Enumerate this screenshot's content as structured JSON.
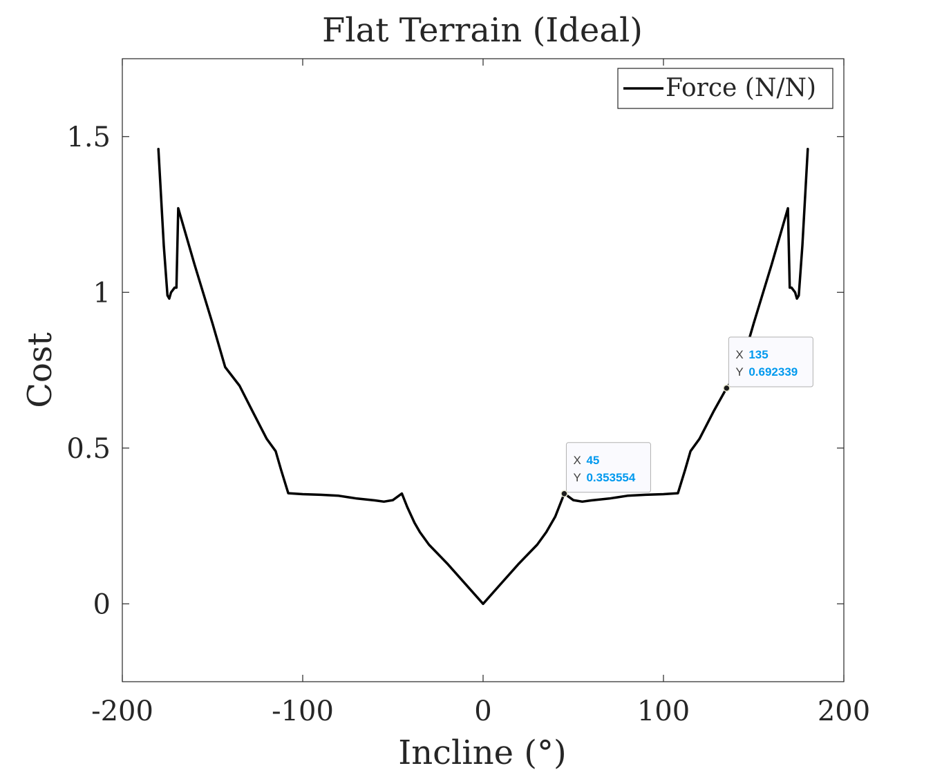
{
  "chart_data": {
    "type": "line",
    "title": "Flat Terrain (Ideal)",
    "xlabel": "Incline (°)",
    "ylabel": "Cost",
    "xlim": [
      -200,
      200
    ],
    "ylim": [
      -0.25,
      1.75
    ],
    "x_ticks": [
      -200,
      -100,
      0,
      100,
      200
    ],
    "x_tick_labels": [
      "-200",
      "-100",
      "0",
      "100",
      "200"
    ],
    "y_ticks": [
      0,
      0.5,
      1,
      1.5
    ],
    "y_tick_labels": [
      "0",
      "0.5",
      "1",
      "1.5"
    ],
    "grid": false,
    "legend_position": "top-right",
    "series": [
      {
        "name": "Force (N/N)",
        "color": "#000000",
        "x": [
          -180,
          -177,
          -175,
          -174,
          -173,
          -171,
          -170,
          -169,
          -160,
          -150,
          -143,
          -135,
          -128,
          -120,
          -115,
          -112,
          -108,
          -100,
          -90,
          -80,
          -70,
          -60,
          -55,
          -50,
          -45,
          -42,
          -38,
          -35,
          -30,
          -20,
          -10,
          0,
          10,
          20,
          30,
          35,
          40,
          45,
          50,
          55,
          60,
          70,
          80,
          90,
          100,
          108,
          112,
          115,
          120,
          128,
          135,
          143,
          150,
          160,
          169,
          170,
          171,
          173,
          174,
          175,
          177,
          180
        ],
        "y": [
          1.46,
          1.15,
          0.99,
          0.98,
          1.0,
          1.015,
          1.015,
          1.27,
          1.09,
          0.9,
          0.76,
          0.7,
          0.62,
          0.53,
          0.49,
          0.43,
          0.355,
          0.352,
          0.35,
          0.347,
          0.338,
          0.332,
          0.328,
          0.333,
          0.354,
          0.31,
          0.26,
          0.23,
          0.19,
          0.13,
          0.065,
          0.0,
          0.065,
          0.13,
          0.19,
          0.23,
          0.28,
          0.354,
          0.333,
          0.328,
          0.332,
          0.338,
          0.347,
          0.35,
          0.352,
          0.355,
          0.43,
          0.49,
          0.53,
          0.62,
          0.692339,
          0.76,
          0.9,
          1.09,
          1.27,
          1.015,
          1.015,
          1.0,
          0.98,
          0.99,
          1.15,
          1.46
        ]
      }
    ],
    "datatips": [
      {
        "x_label": "X",
        "x_value": "45",
        "y_label": "Y",
        "y_value": "0.353554",
        "x": 45,
        "y": 0.353554
      },
      {
        "x_label": "X",
        "x_value": "135",
        "y_label": "Y",
        "y_value": "0.692339",
        "x": 135,
        "y": 0.692339
      }
    ],
    "datatip_value_color": "#0099ee",
    "datatip_label_color": "#404040"
  }
}
